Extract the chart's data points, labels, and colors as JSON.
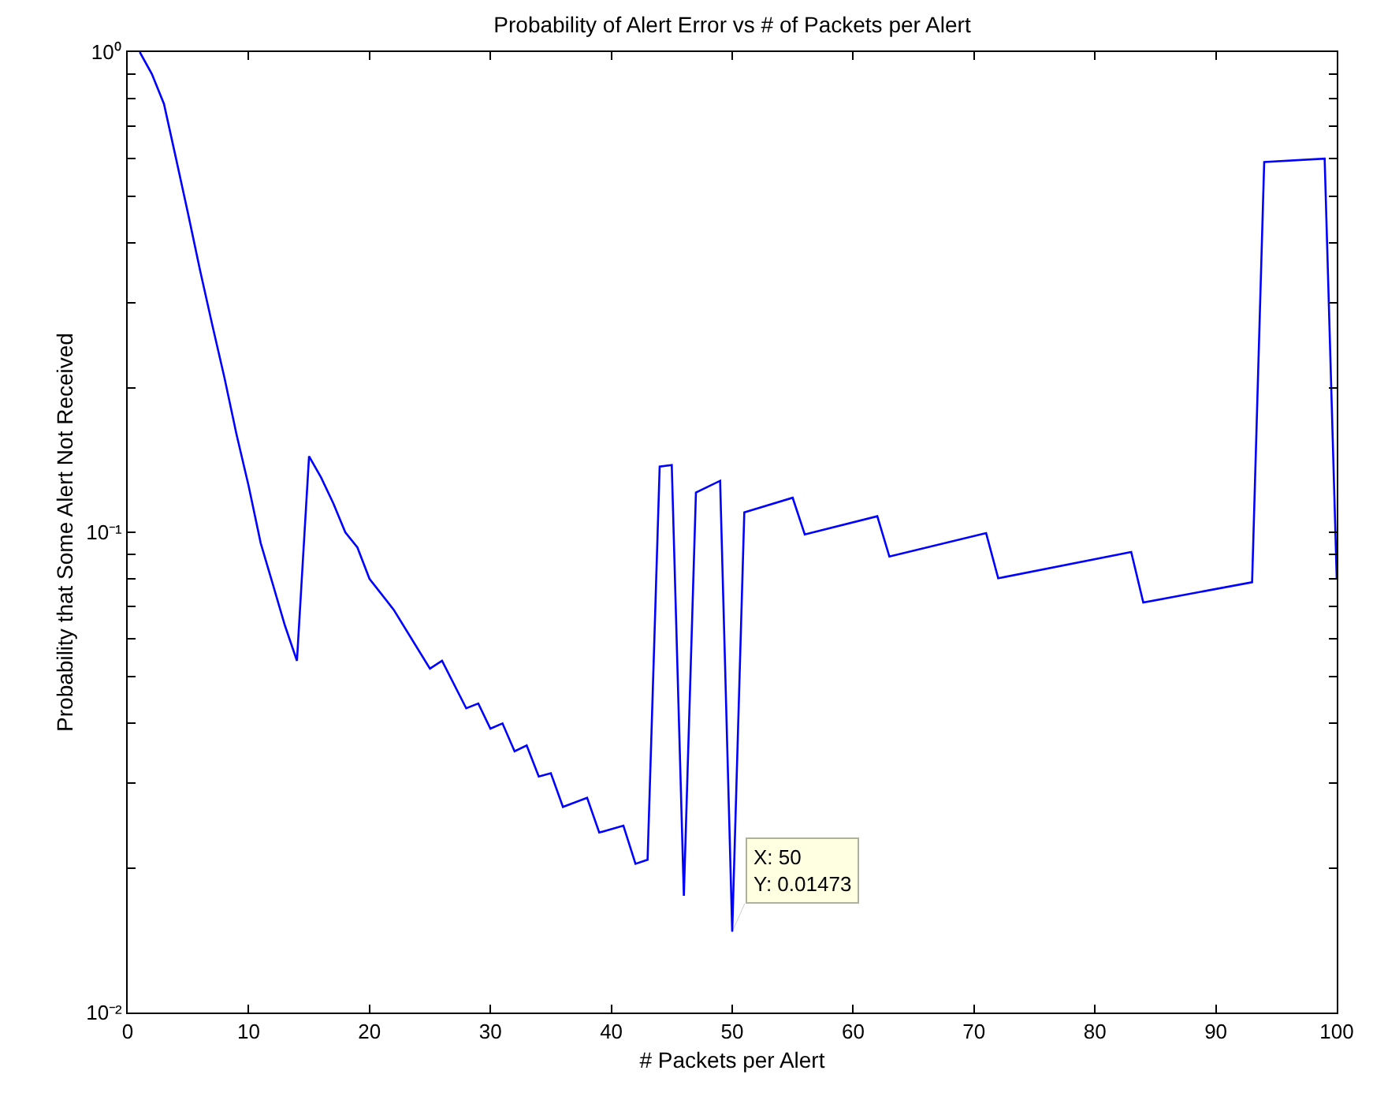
{
  "chart_data": {
    "type": "line",
    "title": "Probability of Alert Error vs # of Packets per Alert",
    "xlabel": "# Packets per Alert",
    "ylabel": "Probability that Some Alert Not Received",
    "series": [
      {
        "color": "#0000ff",
        "x": [
          1,
          2,
          3,
          4,
          5,
          6,
          7,
          8,
          9,
          10,
          11,
          12,
          13,
          14,
          15,
          16,
          17,
          18,
          19,
          20,
          22,
          25,
          26,
          28,
          29,
          30,
          31,
          32,
          33,
          34,
          35,
          36,
          38,
          39,
          41,
          42,
          43,
          44,
          45,
          46,
          47,
          49,
          50,
          51,
          55,
          56,
          62,
          63,
          71,
          72,
          83,
          84,
          93,
          94,
          99,
          100
        ],
        "values": [
          1.0,
          0.9,
          0.78,
          0.6,
          0.46,
          0.35,
          0.27,
          0.21,
          0.16,
          0.125,
          0.095,
          0.078,
          0.064,
          0.054,
          0.144,
          0.13,
          0.115,
          0.1,
          0.093,
          0.08,
          0.069,
          0.052,
          0.054,
          0.043,
          0.044,
          0.039,
          0.04,
          0.035,
          0.036,
          0.031,
          0.0315,
          0.0268,
          0.028,
          0.0237,
          0.0245,
          0.0204,
          0.0208,
          0.137,
          0.138,
          0.0175,
          0.121,
          0.128,
          0.01473,
          0.11,
          0.118,
          0.099,
          0.108,
          0.089,
          0.0996,
          0.0802,
          0.091,
          0.0714,
          0.0787,
          0.59,
          0.6,
          0.08
        ]
      }
    ],
    "log": "y",
    "xlim": [
      0,
      100
    ],
    "ylim": [
      0.01,
      1
    ],
    "xticks": [
      0,
      10,
      20,
      30,
      40,
      50,
      60,
      70,
      80,
      90,
      100
    ],
    "yticks": [
      {
        "value": 0.01,
        "label": "10⁻²"
      },
      {
        "value": 0.02,
        "label": null
      },
      {
        "value": 0.03,
        "label": null
      },
      {
        "value": 0.04,
        "label": null
      },
      {
        "value": 0.05,
        "label": null
      },
      {
        "value": 0.06,
        "label": null
      },
      {
        "value": 0.07,
        "label": null
      },
      {
        "value": 0.08,
        "label": null
      },
      {
        "value": 0.09,
        "label": null
      },
      {
        "value": 0.1,
        "label": "10⁻¹"
      },
      {
        "value": 0.2,
        "label": null
      },
      {
        "value": 0.3,
        "label": null
      },
      {
        "value": 0.4,
        "label": null
      },
      {
        "value": 0.5,
        "label": null
      },
      {
        "value": 0.6,
        "label": null
      },
      {
        "value": 0.7,
        "label": null
      },
      {
        "value": 0.8,
        "label": null
      },
      {
        "value": 0.9,
        "label": null
      },
      {
        "value": 1,
        "label": "10⁰"
      }
    ],
    "annotations": [
      {
        "text": "X: 50\nY: 0.01473",
        "x": 50,
        "y": 0.01473
      }
    ],
    "marker": "none",
    "line_style": "solid"
  }
}
